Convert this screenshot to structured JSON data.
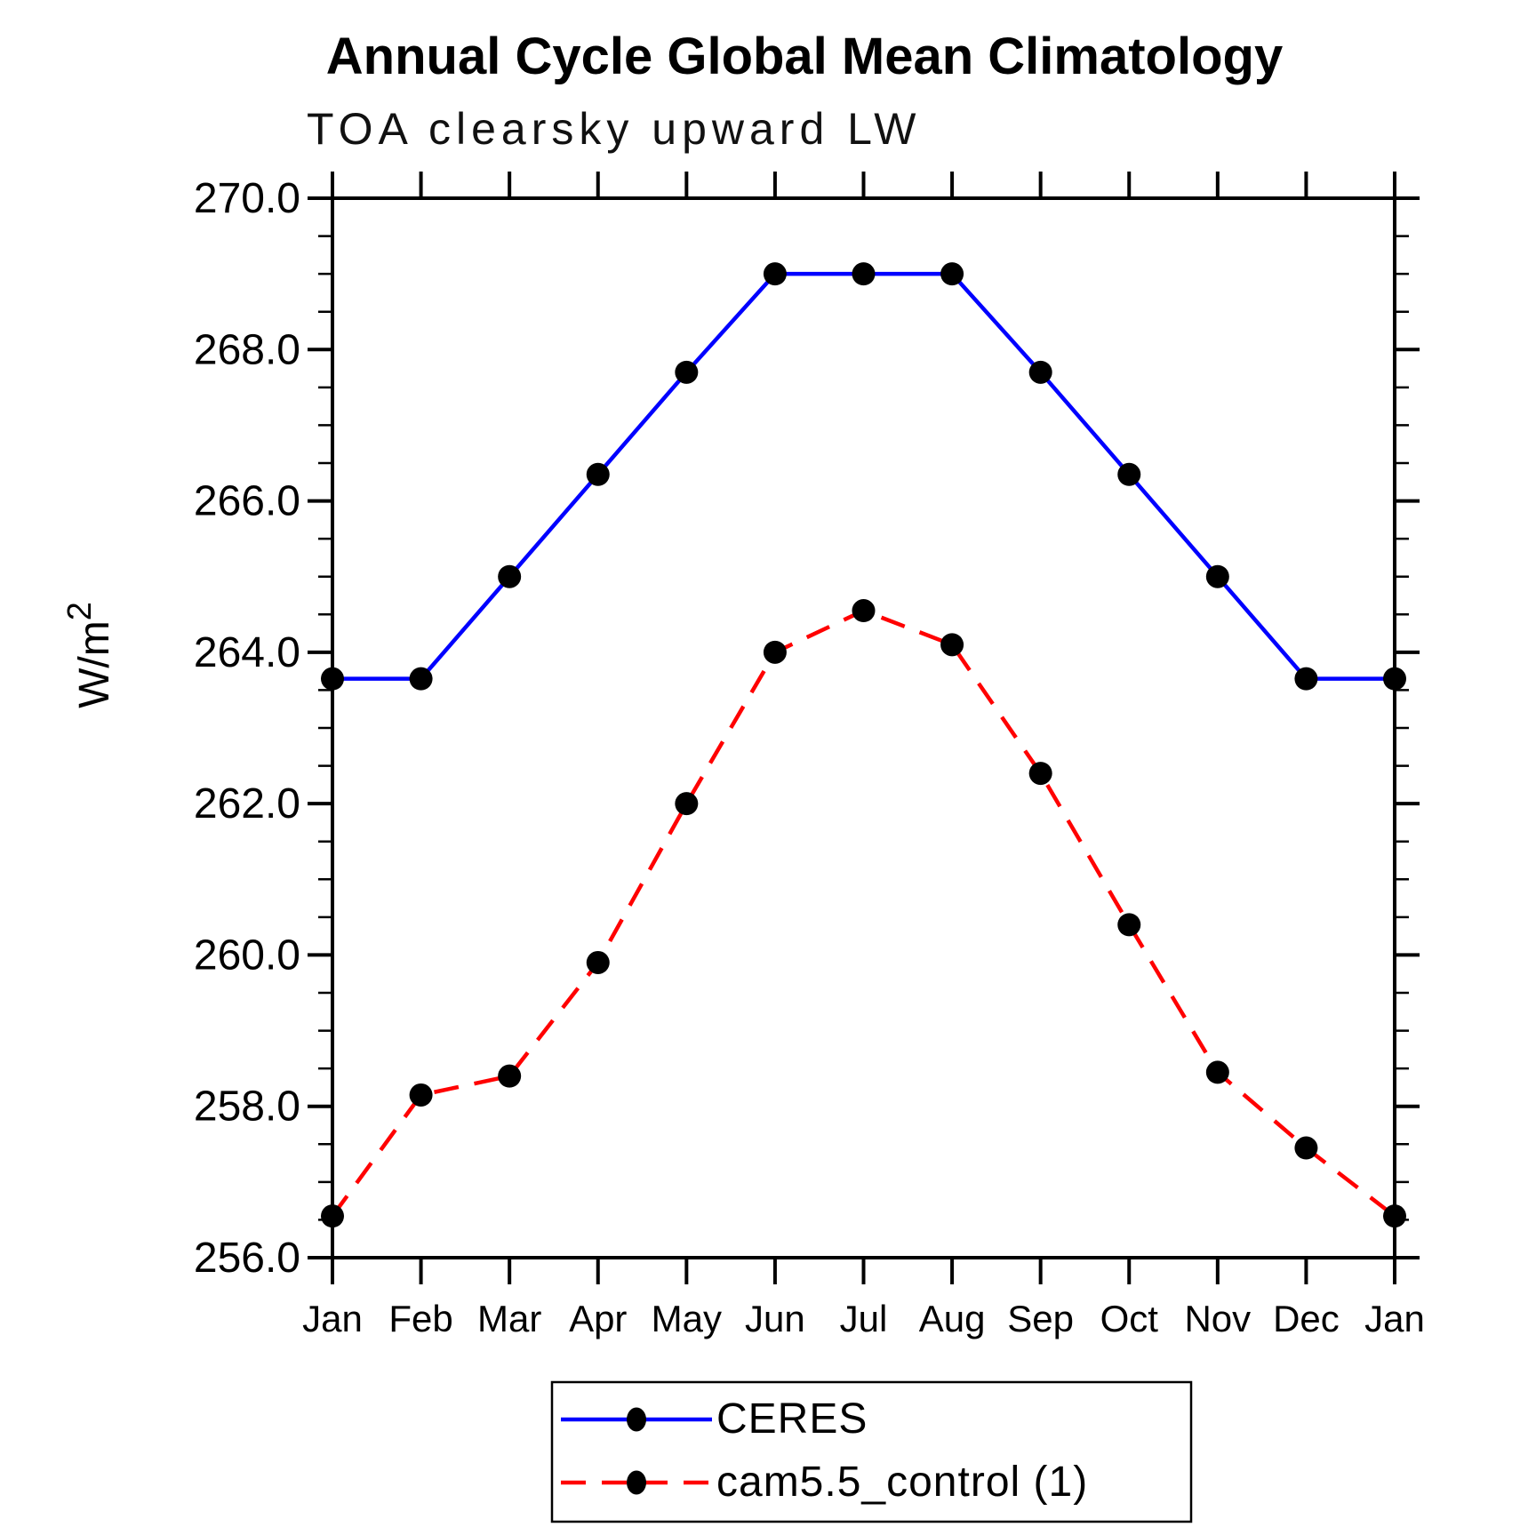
{
  "chart_data": {
    "type": "line",
    "title": "Annual Cycle Global Mean Climatology",
    "subtitle": "TOA clearsky upward LW",
    "ylabel": "W/m²",
    "ylabel_base": "W/m",
    "ylabel_exponent": "2",
    "xlabel": "",
    "categories": [
      "Jan",
      "Feb",
      "Mar",
      "Apr",
      "May",
      "Jun",
      "Jul",
      "Aug",
      "Sep",
      "Oct",
      "Nov",
      "Dec",
      "Jan"
    ],
    "series": [
      {
        "name": "CERES",
        "color": "#0000ff",
        "line_style": "solid",
        "marker": "filled-circle",
        "marker_color": "#000000",
        "values": [
          263.65,
          263.65,
          265.0,
          266.35,
          267.7,
          269.0,
          269.0,
          269.0,
          267.7,
          266.35,
          265.0,
          263.65,
          263.65
        ]
      },
      {
        "name": "cam5.5_control (1)",
        "color": "#ff0000",
        "line_style": "dashed",
        "marker": "filled-circle",
        "marker_color": "#000000",
        "values": [
          256.55,
          258.15,
          258.4,
          259.9,
          262.0,
          264.0,
          264.55,
          264.1,
          262.4,
          260.4,
          258.45,
          257.45,
          256.55
        ]
      }
    ],
    "ylim": [
      256.0,
      270.0
    ],
    "ytick_interval": 2.0,
    "yminor_interval": 0.5,
    "ytick_labels": [
      "270.0",
      "268.0",
      "266.0",
      "264.0",
      "262.0",
      "260.0",
      "258.0",
      "256.0"
    ],
    "grid": "off",
    "axis_color": "#000000",
    "legend": {
      "position": "bottom-center",
      "entries": [
        "CERES",
        "cam5.5_control (1)"
      ]
    }
  }
}
